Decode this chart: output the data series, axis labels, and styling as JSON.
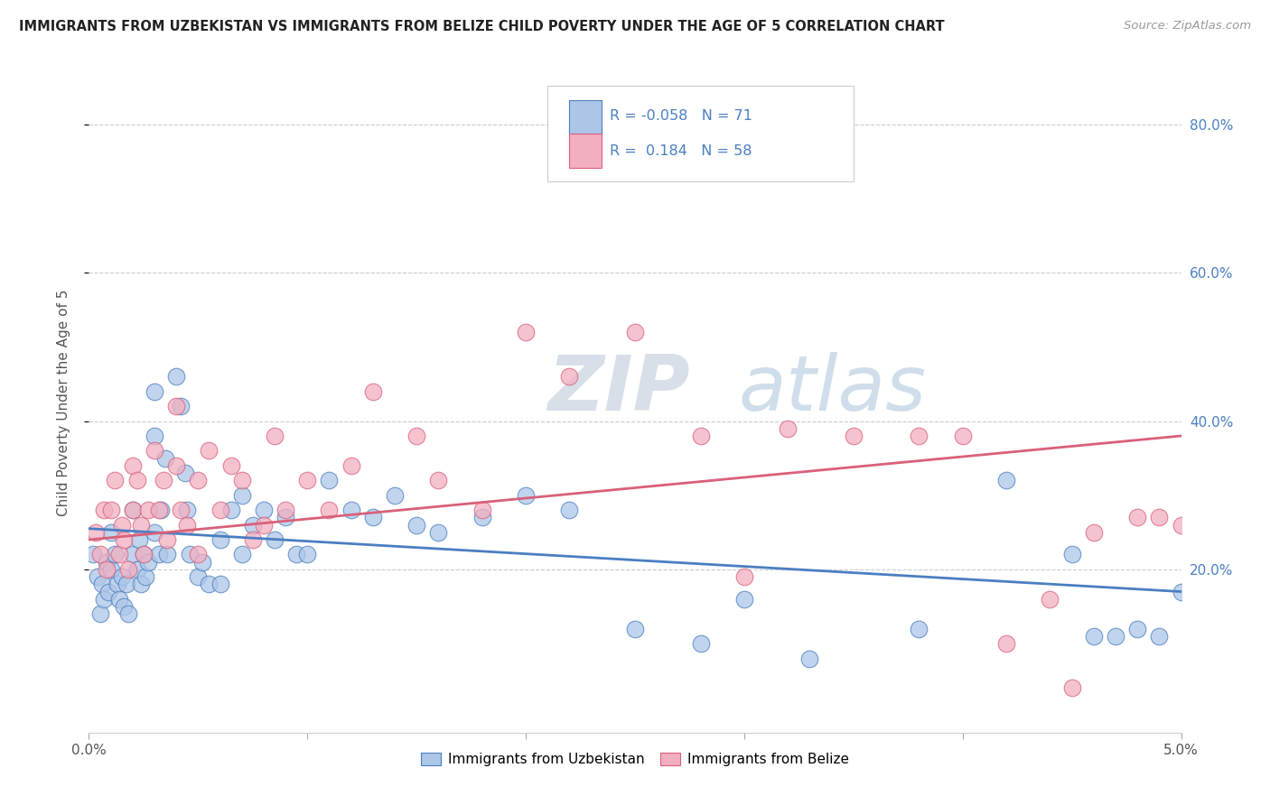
{
  "title": "IMMIGRANTS FROM UZBEKISTAN VS IMMIGRANTS FROM BELIZE CHILD POVERTY UNDER THE AGE OF 5 CORRELATION CHART",
  "source": "Source: ZipAtlas.com",
  "ylabel": "Child Poverty Under the Age of 5",
  "legend_label1": "Immigrants from Uzbekistan",
  "legend_label2": "Immigrants from Belize",
  "R1": -0.058,
  "N1": 71,
  "R2": 0.184,
  "N2": 58,
  "color1": "#adc6e8",
  "color2": "#f2afc0",
  "line_color1": "#4a7fc1",
  "line_color2": "#d9607a",
  "watermark_zip": "ZIP",
  "watermark_atlas": "atlas",
  "xlim": [
    0.0,
    0.05
  ],
  "ylim": [
    -0.02,
    0.87
  ],
  "right_yticklabels": [
    "20.0%",
    "40.0%",
    "60.0%",
    "80.0%"
  ],
  "right_yticks": [
    0.2,
    0.4,
    0.6,
    0.8
  ],
  "uzbekistan_x": [
    0.0002,
    0.0004,
    0.0005,
    0.0006,
    0.0007,
    0.0008,
    0.0009,
    0.001,
    0.001,
    0.0012,
    0.0013,
    0.0014,
    0.0015,
    0.0016,
    0.0017,
    0.0018,
    0.002,
    0.002,
    0.0022,
    0.0023,
    0.0024,
    0.0025,
    0.0026,
    0.0027,
    0.003,
    0.003,
    0.003,
    0.0032,
    0.0033,
    0.0035,
    0.0036,
    0.004,
    0.0042,
    0.0044,
    0.0045,
    0.0046,
    0.005,
    0.0052,
    0.0055,
    0.006,
    0.006,
    0.0065,
    0.007,
    0.007,
    0.0075,
    0.008,
    0.0085,
    0.009,
    0.0095,
    0.01,
    0.011,
    0.012,
    0.013,
    0.014,
    0.015,
    0.016,
    0.018,
    0.02,
    0.022,
    0.025,
    0.028,
    0.03,
    0.033,
    0.038,
    0.042,
    0.045,
    0.046,
    0.047,
    0.048,
    0.049,
    0.05
  ],
  "uzbekistan_y": [
    0.22,
    0.19,
    0.14,
    0.18,
    0.16,
    0.21,
    0.17,
    0.25,
    0.2,
    0.22,
    0.18,
    0.16,
    0.19,
    0.15,
    0.18,
    0.14,
    0.28,
    0.22,
    0.2,
    0.24,
    0.18,
    0.22,
    0.19,
    0.21,
    0.44,
    0.38,
    0.25,
    0.22,
    0.28,
    0.35,
    0.22,
    0.46,
    0.42,
    0.33,
    0.28,
    0.22,
    0.19,
    0.21,
    0.18,
    0.24,
    0.18,
    0.28,
    0.3,
    0.22,
    0.26,
    0.28,
    0.24,
    0.27,
    0.22,
    0.22,
    0.32,
    0.28,
    0.27,
    0.3,
    0.26,
    0.25,
    0.27,
    0.3,
    0.28,
    0.12,
    0.1,
    0.16,
    0.08,
    0.12,
    0.32,
    0.22,
    0.11,
    0.11,
    0.12,
    0.11,
    0.17
  ],
  "belize_x": [
    0.0003,
    0.0005,
    0.0007,
    0.0008,
    0.001,
    0.0012,
    0.0014,
    0.0015,
    0.0016,
    0.0018,
    0.002,
    0.002,
    0.0022,
    0.0024,
    0.0025,
    0.0027,
    0.003,
    0.0032,
    0.0034,
    0.0036,
    0.004,
    0.004,
    0.0042,
    0.0045,
    0.005,
    0.005,
    0.0055,
    0.006,
    0.0065,
    0.007,
    0.0075,
    0.008,
    0.0085,
    0.009,
    0.01,
    0.011,
    0.012,
    0.013,
    0.015,
    0.016,
    0.018,
    0.02,
    0.022,
    0.024,
    0.025,
    0.028,
    0.03,
    0.032,
    0.035,
    0.038,
    0.04,
    0.042,
    0.044,
    0.045,
    0.046,
    0.048,
    0.049,
    0.05
  ],
  "belize_y": [
    0.25,
    0.22,
    0.28,
    0.2,
    0.28,
    0.32,
    0.22,
    0.26,
    0.24,
    0.2,
    0.34,
    0.28,
    0.32,
    0.26,
    0.22,
    0.28,
    0.36,
    0.28,
    0.32,
    0.24,
    0.42,
    0.34,
    0.28,
    0.26,
    0.32,
    0.22,
    0.36,
    0.28,
    0.34,
    0.32,
    0.24,
    0.26,
    0.38,
    0.28,
    0.32,
    0.28,
    0.34,
    0.44,
    0.38,
    0.32,
    0.28,
    0.52,
    0.46,
    0.76,
    0.52,
    0.38,
    0.19,
    0.39,
    0.38,
    0.38,
    0.38,
    0.1,
    0.16,
    0.04,
    0.25,
    0.27,
    0.27,
    0.26
  ]
}
